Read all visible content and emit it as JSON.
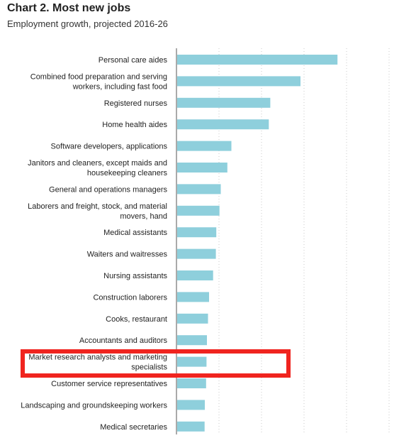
{
  "chart_data": {
    "type": "bar",
    "orientation": "horizontal",
    "title": "Chart 2. Most new jobs",
    "subtitle": "Employment growth, projected 2016-26",
    "categories": [
      "Personal care aides",
      "Combined food preparation and serving workers, including fast food",
      "Registered nurses",
      "Home health aides",
      "Software developers, applications",
      "Janitors and cleaners, except maids and housekeeping cleaners",
      "General and operations managers",
      "Laborers and freight, stock, and material movers, hand",
      "Medical assistants",
      "Waiters and waitresses",
      "Nursing assistants",
      "Construction laborers",
      "Cooks, restaurant",
      "Accountants and auditors",
      "Market research analysts and marketing specialists",
      "Customer service representatives",
      "Landscaping and groundskeeping workers",
      "Medical secretaries"
    ],
    "labels": [
      [
        "Personal care aides"
      ],
      [
        "Combined food preparation and serving",
        "workers, including fast food"
      ],
      [
        "Registered nurses"
      ],
      [
        "Home health aides"
      ],
      [
        "Software developers, applications"
      ],
      [
        "Janitors and cleaners, except maids and",
        "housekeeping cleaners"
      ],
      [
        "General and operations managers"
      ],
      [
        "Laborers and freight, stock, and material",
        "movers, hand"
      ],
      [
        "Medical assistants"
      ],
      [
        "Waiters and waitresses"
      ],
      [
        "Nursing assistants"
      ],
      [
        "Construction laborers"
      ],
      [
        "Cooks, restaurant"
      ],
      [
        "Accountants and auditors"
      ],
      [
        "Market research analysts and marketing",
        "specialists"
      ],
      [
        "Customer service representatives"
      ],
      [
        "Landscaping and groundskeeping workers"
      ],
      [
        "Medical secretaries"
      ]
    ],
    "values": [
      754,
      580,
      438,
      431,
      255,
      236,
      205,
      199,
      184,
      182,
      169,
      150,
      145,
      140,
      138,
      136,
      130,
      129
    ],
    "xlim": [
      0,
      1000
    ],
    "grid": true,
    "bar_color": "#8ecfdc",
    "highlight": {
      "category": "Market research analysts and marketing specialists",
      "color": "#f0241f"
    }
  }
}
